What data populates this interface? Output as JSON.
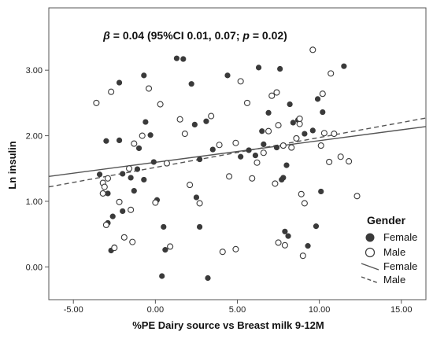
{
  "chart_data": {
    "type": "scatter",
    "annotation": {
      "beta_symbol": "β",
      "beta_text": " = 0.04 (95%CI 0.01, 0.07; ",
      "p_symbol": "p",
      "p_text": " = 0.02)"
    },
    "xlabel": "%PE Dairy source vs Breast milk 9-12M",
    "ylabel": "Ln insulin",
    "xlim": [
      -6.5,
      16.5
    ],
    "ylim": [
      -0.5,
      3.95
    ],
    "x_ticks": [
      -5,
      0,
      5,
      10,
      15
    ],
    "x_tick_labels": [
      "-5.00",
      "0.00",
      "5.00",
      "10.00",
      "15.00"
    ],
    "y_ticks": [
      0,
      1,
      2,
      3
    ],
    "y_tick_labels": [
      "0.00",
      "1.00",
      "2.00",
      "3.00"
    ],
    "grid": false,
    "legend": {
      "title": "Gender",
      "position": "right",
      "marker_entries": [
        "Female",
        "Male"
      ],
      "line_entries": [
        "Female",
        "Male"
      ]
    },
    "series": [
      {
        "name": "Female",
        "marker": "filled-circle",
        "color": "#3a3a3a",
        "points": [
          [
            -3.4,
            1.41
          ],
          [
            -3.0,
            1.92
          ],
          [
            -2.2,
            2.81
          ],
          [
            -0.7,
            2.92
          ],
          [
            -0.3,
            2.01
          ],
          [
            -2.2,
            1.93
          ],
          [
            -2.0,
            1.42
          ],
          [
            -1.3,
            1.16
          ],
          [
            -1.0,
            1.81
          ],
          [
            -0.6,
            2.21
          ],
          [
            -1.5,
            1.36
          ],
          [
            -1.1,
            1.49
          ],
          [
            -0.7,
            1.33
          ],
          [
            -0.1,
            1.6
          ],
          [
            -2.9,
            1.12
          ],
          [
            -2.6,
            0.77
          ],
          [
            -2.0,
            0.85
          ],
          [
            -2.9,
            0.67
          ],
          [
            -2.7,
            0.25
          ],
          [
            -2.5,
            0.3
          ],
          [
            0.1,
            1.02
          ],
          [
            0.6,
            0.26
          ],
          [
            0.5,
            0.61
          ],
          [
            0.4,
            -0.14
          ],
          [
            1.3,
            3.18
          ],
          [
            1.7,
            3.17
          ],
          [
            2.2,
            2.79
          ],
          [
            2.4,
            2.17
          ],
          [
            3.1,
            2.22
          ],
          [
            3.5,
            1.79
          ],
          [
            2.7,
            1.64
          ],
          [
            2.5,
            1.06
          ],
          [
            2.7,
            0.61
          ],
          [
            3.2,
            -0.17
          ],
          [
            4.4,
            2.92
          ],
          [
            5.2,
            1.68
          ],
          [
            5.7,
            1.78
          ],
          [
            6.1,
            1.7
          ],
          [
            6.6,
            1.87
          ],
          [
            6.5,
            2.07
          ],
          [
            6.3,
            3.04
          ],
          [
            6.9,
            2.35
          ],
          [
            7.4,
            1.82
          ],
          [
            7.8,
            1.36
          ],
          [
            8.0,
            1.55
          ],
          [
            8.4,
            2.2
          ],
          [
            8.7,
            2.24
          ],
          [
            8.2,
            2.48
          ],
          [
            9.1,
            2.03
          ],
          [
            7.6,
            3.02
          ],
          [
            7.7,
            1.33
          ],
          [
            7.9,
            0.54
          ],
          [
            8.1,
            0.47
          ],
          [
            9.3,
            0.32
          ],
          [
            9.6,
            2.08
          ],
          [
            9.9,
            2.56
          ],
          [
            10.2,
            2.36
          ],
          [
            11.5,
            3.06
          ],
          [
            9.8,
            0.62
          ],
          [
            10.1,
            1.15
          ]
        ]
      },
      {
        "name": "Male",
        "marker": "open-circle",
        "color": "#3a3a3a",
        "points": [
          [
            -3.6,
            2.5
          ],
          [
            -2.7,
            2.67
          ],
          [
            -3.2,
            1.28
          ],
          [
            -2.9,
            1.35
          ],
          [
            -3.1,
            1.22
          ],
          [
            -3.2,
            1.12
          ],
          [
            -3.0,
            0.64
          ],
          [
            -2.5,
            0.29
          ],
          [
            -2.2,
            0.99
          ],
          [
            -1.9,
            0.45
          ],
          [
            -1.5,
            0.87
          ],
          [
            -1.4,
            0.38
          ],
          [
            -1.6,
            1.5
          ],
          [
            -1.3,
            1.88
          ],
          [
            -0.8,
            2.0
          ],
          [
            -0.4,
            2.72
          ],
          [
            0.0,
            0.98
          ],
          [
            0.3,
            2.48
          ],
          [
            0.7,
            1.58
          ],
          [
            0.9,
            0.31
          ],
          [
            1.5,
            2.25
          ],
          [
            1.8,
            2.03
          ],
          [
            2.1,
            1.25
          ],
          [
            2.7,
            0.97
          ],
          [
            3.4,
            2.3
          ],
          [
            3.9,
            1.86
          ],
          [
            4.1,
            0.23
          ],
          [
            4.5,
            1.38
          ],
          [
            4.9,
            1.89
          ],
          [
            5.2,
            2.83
          ],
          [
            5.6,
            2.5
          ],
          [
            5.9,
            1.35
          ],
          [
            6.2,
            1.59
          ],
          [
            6.6,
            1.74
          ],
          [
            6.9,
            2.07
          ],
          [
            7.1,
            2.61
          ],
          [
            7.4,
            2.66
          ],
          [
            7.3,
            1.27
          ],
          [
            7.8,
            1.85
          ],
          [
            7.5,
            0.37
          ],
          [
            7.9,
            0.33
          ],
          [
            8.3,
            1.82
          ],
          [
            8.6,
            1.96
          ],
          [
            8.8,
            2.18
          ],
          [
            8.8,
            2.26
          ],
          [
            8.9,
            1.11
          ],
          [
            9.1,
            0.97
          ],
          [
            9.6,
            3.31
          ],
          [
            10.1,
            1.85
          ],
          [
            10.3,
            2.04
          ],
          [
            10.6,
            1.6
          ],
          [
            10.2,
            2.64
          ],
          [
            10.7,
            2.95
          ],
          [
            10.9,
            2.03
          ],
          [
            11.3,
            1.68
          ],
          [
            11.8,
            1.61
          ],
          [
            12.3,
            1.08
          ],
          [
            7.5,
            2.16
          ],
          [
            4.9,
            0.27
          ],
          [
            9.0,
            0.17
          ]
        ]
      }
    ],
    "fit_lines": [
      {
        "name": "Female",
        "style": "solid",
        "color": "#555555",
        "x": [
          -6.5,
          16.5
        ],
        "y": [
          1.38,
          2.14
        ]
      },
      {
        "name": "Male",
        "style": "dashed",
        "color": "#555555",
        "x": [
          -6.5,
          16.5
        ],
        "y": [
          1.22,
          2.27
        ]
      }
    ]
  }
}
